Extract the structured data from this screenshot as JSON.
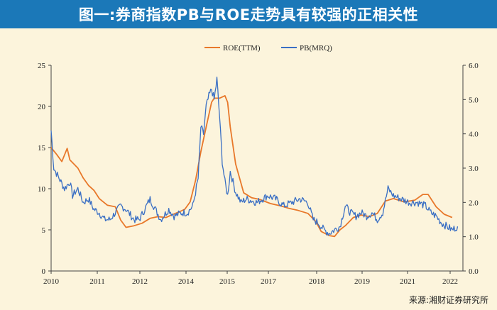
{
  "header": {
    "title": "图一:券商指数PB与ROE走势具有较强的正相关性"
  },
  "footer": {
    "source": "来源:湘财证券研究所"
  },
  "colors": {
    "roe": "#e8782a",
    "pb": "#3a6fc4",
    "title_bg": "#1b78b8",
    "page_bg": "#fcf4dc"
  },
  "chart_data": {
    "type": "line",
    "title": "",
    "legend_position": "top-center",
    "grid": false,
    "x_ticks": [
      "2010",
      "2011",
      "2012",
      "2014",
      "2015",
      "2017",
      "2018",
      "2019",
      "2021",
      "2022"
    ],
    "y_left": {
      "ticks": [
        "0",
        "5",
        "10",
        "15",
        "20",
        "25"
      ],
      "range": [
        0,
        25
      ]
    },
    "y_right": {
      "ticks": [
        "0.0",
        "1.0",
        "2.0",
        "3.0",
        "4.0",
        "5.0",
        "6.0"
      ],
      "range": [
        0,
        6
      ]
    },
    "series": [
      {
        "name": "ROE(TTM)",
        "axis": "left",
        "color": "#e8782a",
        "points": [
          [
            "2010-01",
            15.0
          ],
          [
            "2010-03",
            14.2
          ],
          [
            "2010-05",
            13.3
          ],
          [
            "2010-07",
            14.9
          ],
          [
            "2010-08",
            13.5
          ],
          [
            "2010-11",
            12.5
          ],
          [
            "2011-01",
            11.3
          ],
          [
            "2011-03",
            10.4
          ],
          [
            "2011-05",
            9.8
          ],
          [
            "2011-07",
            8.8
          ],
          [
            "2011-10",
            8.0
          ],
          [
            "2012-01",
            7.8
          ],
          [
            "2012-03",
            6.2
          ],
          [
            "2012-05",
            5.3
          ],
          [
            "2012-08",
            5.5
          ],
          [
            "2012-11",
            5.8
          ],
          [
            "2013-02",
            6.4
          ],
          [
            "2013-05",
            6.6
          ],
          [
            "2013-08",
            6.5
          ],
          [
            "2013-10",
            6.8
          ],
          [
            "2014-01",
            7.2
          ],
          [
            "2014-03",
            7.5
          ],
          [
            "2014-05",
            8.4
          ],
          [
            "2014-07",
            11.0
          ],
          [
            "2014-09",
            14.5
          ],
          [
            "2014-11",
            17.5
          ],
          [
            "2015-01",
            20.5
          ],
          [
            "2015-02",
            21.0
          ],
          [
            "2015-04",
            21.0
          ],
          [
            "2015-06",
            21.3
          ],
          [
            "2015-07",
            20.5
          ],
          [
            "2015-08",
            17.5
          ],
          [
            "2015-10",
            13.0
          ],
          [
            "2016-01",
            9.5
          ],
          [
            "2016-04",
            8.9
          ],
          [
            "2016-07",
            8.7
          ],
          [
            "2016-11",
            8.2
          ],
          [
            "2017-03",
            7.9
          ],
          [
            "2017-06",
            7.6
          ],
          [
            "2017-09",
            7.4
          ],
          [
            "2018-01",
            7.0
          ],
          [
            "2018-04",
            6.0
          ],
          [
            "2018-06",
            4.8
          ],
          [
            "2018-09",
            4.3
          ],
          [
            "2018-11",
            4.2
          ],
          [
            "2019-01",
            5.0
          ],
          [
            "2019-03",
            5.5
          ],
          [
            "2019-06",
            6.5
          ],
          [
            "2019-09",
            6.8
          ],
          [
            "2019-12",
            6.6
          ],
          [
            "2020-03",
            7.0
          ],
          [
            "2020-06",
            8.5
          ],
          [
            "2020-09",
            8.8
          ],
          [
            "2021-01",
            8.4
          ],
          [
            "2021-05",
            8.6
          ],
          [
            "2021-08",
            9.3
          ],
          [
            "2021-10",
            9.3
          ],
          [
            "2022-01",
            7.8
          ],
          [
            "2022-04",
            6.9
          ],
          [
            "2022-07",
            6.5
          ]
        ]
      },
      {
        "name": "PB(MRQ)",
        "axis": "right",
        "color": "#3a6fc4",
        "points": [
          [
            "2010-01",
            4.1
          ],
          [
            "2010-02",
            3.0
          ],
          [
            "2010-04",
            2.7
          ],
          [
            "2010-06",
            2.4
          ],
          [
            "2010-08",
            2.6
          ],
          [
            "2010-09",
            2.2
          ],
          [
            "2010-11",
            2.4
          ],
          [
            "2011-01",
            2.0
          ],
          [
            "2011-03",
            2.1
          ],
          [
            "2011-05",
            1.8
          ],
          [
            "2011-07",
            1.7
          ],
          [
            "2011-09",
            1.5
          ],
          [
            "2011-11",
            1.5
          ],
          [
            "2012-01",
            1.7
          ],
          [
            "2012-03",
            1.9
          ],
          [
            "2012-05",
            1.8
          ],
          [
            "2012-08",
            1.5
          ],
          [
            "2012-10",
            1.5
          ],
          [
            "2012-12",
            1.8
          ],
          [
            "2013-02",
            2.1
          ],
          [
            "2013-04",
            1.8
          ],
          [
            "2013-06",
            1.5
          ],
          [
            "2013-09",
            1.8
          ],
          [
            "2013-11",
            1.6
          ],
          [
            "2014-02",
            1.7
          ],
          [
            "2014-04",
            1.7
          ],
          [
            "2014-06",
            1.9
          ],
          [
            "2014-08",
            2.7
          ],
          [
            "2014-09",
            4.2
          ],
          [
            "2014-10",
            4.0
          ],
          [
            "2014-11",
            4.8
          ],
          [
            "2014-12",
            5.1
          ],
          [
            "2015-01",
            5.3
          ],
          [
            "2015-02",
            5.0
          ],
          [
            "2015-03",
            5.6
          ],
          [
            "2015-04",
            4.5
          ],
          [
            "2015-05",
            3.2
          ],
          [
            "2015-06",
            2.6
          ],
          [
            "2015-07",
            2.2
          ],
          [
            "2015-08",
            2.9
          ],
          [
            "2015-10",
            2.3
          ],
          [
            "2015-12",
            2.0
          ],
          [
            "2016-02",
            2.1
          ],
          [
            "2016-06",
            2.0
          ],
          [
            "2016-10",
            2.2
          ],
          [
            "2017-01",
            2.1
          ],
          [
            "2017-04",
            1.9
          ],
          [
            "2017-07",
            2.0
          ],
          [
            "2017-10",
            2.1
          ],
          [
            "2018-01",
            2.0
          ],
          [
            "2018-03",
            1.5
          ],
          [
            "2018-05",
            1.4
          ],
          [
            "2018-07",
            1.2
          ],
          [
            "2018-09",
            1.1
          ],
          [
            "2018-11",
            1.2
          ],
          [
            "2019-01",
            1.3
          ],
          [
            "2019-03",
            1.9
          ],
          [
            "2019-05",
            1.7
          ],
          [
            "2019-07",
            1.6
          ],
          [
            "2019-09",
            1.7
          ],
          [
            "2019-11",
            1.6
          ],
          [
            "2020-01",
            1.7
          ],
          [
            "2020-03",
            1.5
          ],
          [
            "2020-05",
            1.7
          ],
          [
            "2020-07",
            2.4
          ],
          [
            "2020-09",
            2.2
          ],
          [
            "2020-12",
            2.1
          ],
          [
            "2021-03",
            2.0
          ],
          [
            "2021-06",
            2.0
          ],
          [
            "2021-09",
            1.9
          ],
          [
            "2021-11",
            1.7
          ],
          [
            "2022-01",
            1.6
          ],
          [
            "2022-03",
            1.4
          ],
          [
            "2022-05",
            1.3
          ],
          [
            "2022-07",
            1.2
          ],
          [
            "2022-09",
            1.3
          ]
        ]
      }
    ]
  }
}
